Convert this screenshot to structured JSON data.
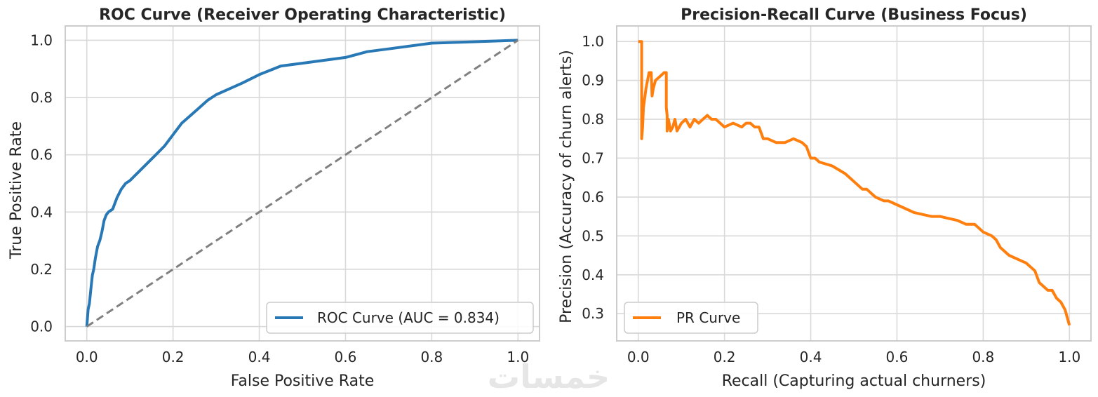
{
  "colors": {
    "roc": "#2878b5",
    "pr": "#ff7f0e",
    "diagonal": "#808080"
  },
  "watermark": "خمسات",
  "chart_data": [
    {
      "type": "line",
      "title": "ROC Curve (Receiver Operating Characteristic)",
      "xlabel": "False Positive Rate",
      "ylabel": "True Positive Rate",
      "xlim": [
        -0.05,
        1.05
      ],
      "ylim": [
        -0.05,
        1.05
      ],
      "xticks": [
        "0.0",
        "0.2",
        "0.4",
        "0.6",
        "0.8",
        "1.0"
      ],
      "yticks": [
        "0.0",
        "0.2",
        "0.4",
        "0.6",
        "0.8",
        "1.0"
      ],
      "grid": true,
      "legend": {
        "placement": "lower-right",
        "entries": [
          "ROC Curve (AUC = 0.834)"
        ]
      },
      "series": [
        {
          "name": "ROC Curve (AUC = 0.834)",
          "x": [
            0,
            0.003,
            0.006,
            0.01,
            0.013,
            0.016,
            0.02,
            0.025,
            0.03,
            0.035,
            0.04,
            0.045,
            0.05,
            0.06,
            0.07,
            0.08,
            0.09,
            0.1,
            0.12,
            0.14,
            0.16,
            0.18,
            0.2,
            0.22,
            0.25,
            0.28,
            0.3,
            0.33,
            0.36,
            0.4,
            0.45,
            0.5,
            0.55,
            0.6,
            0.65,
            0.7,
            0.8,
            0.9,
            1.0
          ],
          "y": [
            0,
            0.06,
            0.08,
            0.14,
            0.18,
            0.2,
            0.24,
            0.28,
            0.3,
            0.33,
            0.37,
            0.39,
            0.4,
            0.41,
            0.45,
            0.48,
            0.5,
            0.51,
            0.54,
            0.57,
            0.6,
            0.63,
            0.67,
            0.71,
            0.75,
            0.79,
            0.81,
            0.83,
            0.85,
            0.88,
            0.91,
            0.92,
            0.93,
            0.94,
            0.96,
            0.97,
            0.99,
            0.995,
            1.0
          ]
        },
        {
          "name": "",
          "style": "dashed",
          "x": [
            0,
            1
          ],
          "y": [
            0,
            1
          ]
        }
      ]
    },
    {
      "type": "line",
      "title": "Precision-Recall Curve (Business Focus)",
      "xlabel": "Recall (Capturing actual churners)",
      "ylabel": "Precision (Accuracy of churn alerts)",
      "xlim": [
        -0.05,
        1.05
      ],
      "ylim": [
        0.23,
        1.04
      ],
      "xticks": [
        "0.0",
        "0.2",
        "0.4",
        "0.6",
        "0.8",
        "1.0"
      ],
      "yticks": [
        "0.3",
        "0.4",
        "0.5",
        "0.6",
        "0.7",
        "0.8",
        "0.9",
        "1.0"
      ],
      "grid": true,
      "legend": {
        "placement": "lower-left",
        "entries": [
          "PR Curve"
        ]
      },
      "series": [
        {
          "name": "PR Curve",
          "x": [
            0,
            0.008,
            0.008,
            0.01,
            0.012,
            0.018,
            0.025,
            0.03,
            0.032,
            0.035,
            0.04,
            0.05,
            0.06,
            0.065,
            0.065,
            0.067,
            0.067,
            0.07,
            0.075,
            0.08,
            0.085,
            0.09,
            0.1,
            0.11,
            0.12,
            0.13,
            0.14,
            0.15,
            0.16,
            0.17,
            0.18,
            0.19,
            0.2,
            0.22,
            0.24,
            0.25,
            0.26,
            0.27,
            0.28,
            0.29,
            0.3,
            0.32,
            0.34,
            0.36,
            0.38,
            0.39,
            0.4,
            0.41,
            0.42,
            0.45,
            0.48,
            0.5,
            0.52,
            0.53,
            0.55,
            0.57,
            0.58,
            0.6,
            0.62,
            0.64,
            0.66,
            0.68,
            0.7,
            0.72,
            0.74,
            0.76,
            0.78,
            0.8,
            0.82,
            0.83,
            0.84,
            0.86,
            0.88,
            0.9,
            0.91,
            0.92,
            0.93,
            0.94,
            0.95,
            0.96,
            0.97,
            0.98,
            0.99,
            1.0
          ],
          "y": [
            1.0,
            1.0,
            0.75,
            0.78,
            0.83,
            0.88,
            0.92,
            0.92,
            0.86,
            0.88,
            0.9,
            0.91,
            0.92,
            0.92,
            0.83,
            0.81,
            0.77,
            0.8,
            0.77,
            0.78,
            0.8,
            0.77,
            0.79,
            0.8,
            0.78,
            0.8,
            0.79,
            0.8,
            0.81,
            0.8,
            0.8,
            0.79,
            0.78,
            0.79,
            0.78,
            0.79,
            0.79,
            0.78,
            0.78,
            0.75,
            0.75,
            0.74,
            0.74,
            0.75,
            0.74,
            0.73,
            0.7,
            0.7,
            0.69,
            0.68,
            0.66,
            0.64,
            0.62,
            0.62,
            0.6,
            0.59,
            0.59,
            0.58,
            0.57,
            0.56,
            0.555,
            0.55,
            0.55,
            0.545,
            0.54,
            0.53,
            0.53,
            0.51,
            0.5,
            0.49,
            0.47,
            0.45,
            0.44,
            0.43,
            0.42,
            0.41,
            0.38,
            0.37,
            0.36,
            0.36,
            0.34,
            0.33,
            0.31,
            0.27
          ]
        }
      ]
    }
  ]
}
